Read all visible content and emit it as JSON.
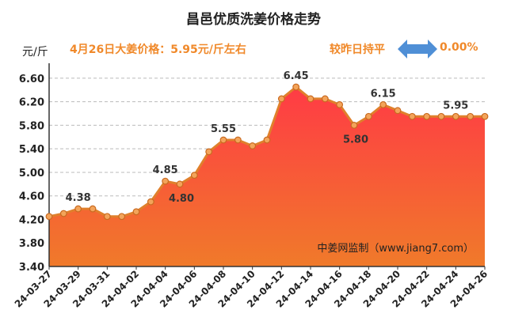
{
  "chart_data": {
    "type": "area",
    "title": "昌邑优质洗姜价格走势",
    "unit_label": "元/斤",
    "headline": "4月26日大姜价格：5.95元/斤左右",
    "compare_label": "较昨日持平",
    "change_percent": "0.00%",
    "watermark": "中姜网监制（www.jiang7.com）",
    "ylim": [
      3.4,
      6.8
    ],
    "yticks": [
      "6.60",
      "6.20",
      "5.80",
      "5.40",
      "5.00",
      "4.60",
      "4.20",
      "3.80",
      "3.40"
    ],
    "grid": true,
    "x": [
      "24-03-27",
      "24-03-28",
      "24-03-29",
      "24-03-30",
      "24-03-31",
      "24-04-01",
      "24-04-02",
      "24-04-03",
      "24-04-04",
      "24-04-05",
      "24-04-06",
      "24-04-07",
      "24-04-08",
      "24-04-09",
      "24-04-10",
      "24-04-11",
      "24-04-12",
      "24-04-13",
      "24-04-14",
      "24-04-15",
      "24-04-16",
      "24-04-17",
      "24-04-18",
      "24-04-19",
      "24-04-20",
      "24-04-21",
      "24-04-22",
      "24-04-23",
      "24-04-24",
      "24-04-25",
      "24-04-26"
    ],
    "xtick_labels": [
      "24-03-27",
      "24-03-29",
      "24-03-31",
      "24-04-02",
      "24-04-04",
      "24-04-06",
      "24-04-08",
      "24-04-10",
      "24-04-12",
      "24-04-14",
      "24-04-16",
      "24-04-18",
      "24-04-20",
      "24-04-22",
      "24-04-24",
      "24-04-26"
    ],
    "values": [
      4.25,
      4.3,
      4.38,
      4.38,
      4.25,
      4.25,
      4.33,
      4.5,
      4.85,
      4.8,
      4.95,
      5.35,
      5.55,
      5.55,
      5.45,
      5.55,
      6.25,
      6.45,
      6.25,
      6.25,
      6.15,
      5.8,
      5.95,
      6.15,
      6.05,
      5.95,
      5.95,
      5.95,
      5.95,
      5.95,
      5.95
    ],
    "data_labels": [
      {
        "index": 2,
        "text": "4.38"
      },
      {
        "index": 8,
        "text": "4.85"
      },
      {
        "index": 9,
        "text": "4.80"
      },
      {
        "index": 12,
        "text": "5.55"
      },
      {
        "index": 17,
        "text": "6.45"
      },
      {
        "index": 21,
        "text": "5.80"
      },
      {
        "index": 23,
        "text": "6.15"
      },
      {
        "index": 28,
        "text": "5.95"
      }
    ],
    "colors": {
      "line": "#e0802c",
      "marker_fill": "#f3a45a",
      "area_top": "#ff3b45",
      "area_bottom": "#f07a2a",
      "accent_text": "#f0892a",
      "arrow": "#4f8fd6",
      "grid": "#bbbbbb"
    }
  }
}
